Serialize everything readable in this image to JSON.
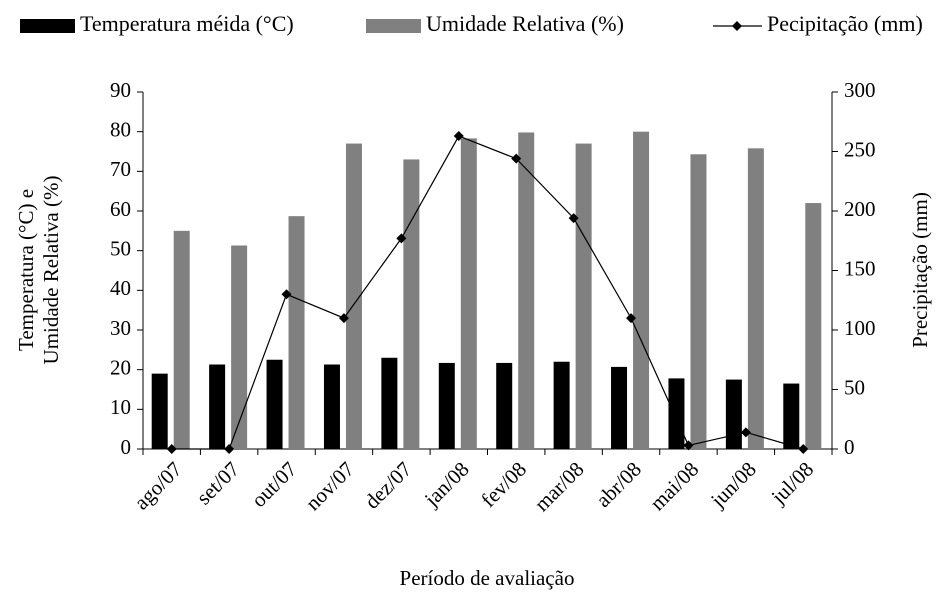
{
  "chart_data": {
    "type": "bar",
    "xlabel": "Período de avaliação",
    "ylabel": [
      "Temperatura (°C) e",
      "Umidade Relativa (%)"
    ],
    "y2label": "Precipitação (mm)",
    "categories": [
      "ago/07",
      "set/07",
      "out/07",
      "nov/07",
      "dez/07",
      "jan/08",
      "fev/08",
      "mar/08",
      "abr/08",
      "mai/08",
      "jun/08",
      "jul/08"
    ],
    "series": [
      {
        "name": "Temperatura méida (°C)",
        "type": "bar",
        "color": "#000000",
        "values": [
          19,
          21.3,
          22.5,
          21.3,
          23,
          21.7,
          21.7,
          22,
          20.7,
          17.8,
          17.5,
          16.5
        ]
      },
      {
        "name": "Umidade Relativa (%)",
        "type": "bar",
        "color": "#808080",
        "values": [
          55,
          51.3,
          58.7,
          77,
          73,
          78.3,
          79.8,
          77,
          80,
          74.3,
          75.8,
          62
        ]
      },
      {
        "name": "Pecipitação (mm)",
        "type": "line",
        "axis": "y2",
        "color": "#000000",
        "values": [
          0,
          0,
          130,
          110,
          177,
          263,
          244,
          194,
          110,
          3,
          14,
          0
        ]
      }
    ],
    "ylim": [
      0,
      90
    ],
    "yticks": [
      0,
      10,
      20,
      30,
      40,
      50,
      60,
      70,
      80,
      90
    ],
    "y2lim": [
      0,
      300
    ],
    "y2ticks": [
      0,
      50,
      100,
      150,
      200,
      250,
      300
    ],
    "grid": false
  }
}
